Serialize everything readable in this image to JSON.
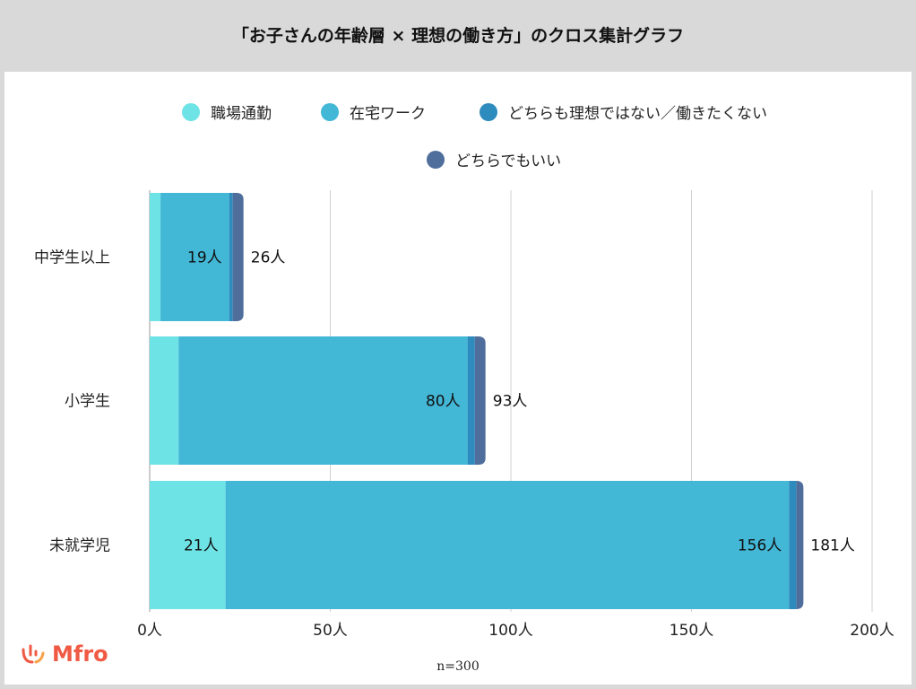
{
  "title": "「お子さんの年齢層 × 理想の働き方」のクロス集計グラフ",
  "logo": "Mfro",
  "note": "n=300",
  "chart_data": {
    "type": "bar",
    "orientation": "horizontal",
    "stacked": true,
    "categories": [
      "中学生以上",
      "小学生",
      "未就学児"
    ],
    "series": [
      {
        "name": "職場通勤",
        "values": [
          3,
          8,
          21
        ],
        "color": "#6ee3e6"
      },
      {
        "name": "在宅ワーク",
        "values": [
          19,
          80,
          156
        ],
        "color": "#42b7d6"
      },
      {
        "name": "どちらも理想ではない／働きたくない",
        "values": [
          1,
          2,
          2
        ],
        "color": "#2e8bbd"
      },
      {
        "name": "どちらでもいい",
        "values": [
          3,
          3,
          2
        ],
        "color": "#4f6e9c"
      }
    ],
    "data_labels": {
      "職場通勤": [
        null,
        null,
        "21人"
      ],
      "在宅ワーク": [
        "19人",
        "80人",
        "156人"
      ]
    },
    "totals": [
      "26人",
      "93人",
      "181人"
    ],
    "xlim": [
      0,
      200
    ],
    "xticks": [
      "0人",
      "50人",
      "100人",
      "150人",
      "200人"
    ],
    "xtick_values": [
      0,
      50,
      100,
      150,
      200
    ],
    "grid": true,
    "legend_position": "top"
  }
}
